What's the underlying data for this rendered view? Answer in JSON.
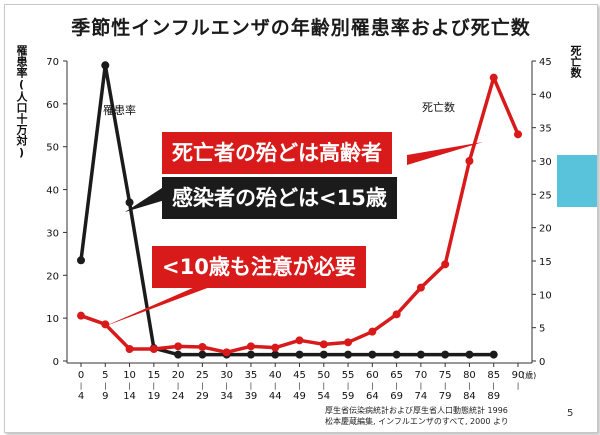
{
  "slide": {
    "title": "季節性インフルエンザの年齢別罹患率および死亡数",
    "left_axis_title": "罹患率(人口十万対)",
    "right_axis_title": "死亡数",
    "source_line1": "厚生省伝染病統計および厚生省人口動態統計 1996",
    "source_line2": "松本慶蔵編集, インフルエンザのすべて, 2000 より",
    "page_number": "5"
  },
  "callouts": {
    "elderly": "死亡者の殆どは高齢者",
    "children": "感染者の殆どは<15歳",
    "under10": "<10歳も注意が必要"
  },
  "colors": {
    "morbidity_line": "#1b1b1b",
    "mortality_line": "#d81a1a",
    "accent_strip": "#59c3dc"
  },
  "chart_data": {
    "type": "line",
    "categories": [
      "0\n4",
      "5\n9",
      "10\n14",
      "15\n19",
      "20\n24",
      "25\n29",
      "30\n34",
      "35\n39",
      "40\n44",
      "45\n49",
      "50\n54",
      "55\n59",
      "60\n64",
      "65\n69",
      "70\n74",
      "75\n79",
      "80\n84",
      "85\n89",
      "90"
    ],
    "category_top": [
      "0",
      "5",
      "10",
      "15",
      "20",
      "25",
      "30",
      "35",
      "40",
      "45",
      "50",
      "55",
      "60",
      "65",
      "70",
      "75",
      "80",
      "85",
      "90"
    ],
    "category_bottom": [
      "4",
      "9",
      "14",
      "19",
      "24",
      "29",
      "34",
      "39",
      "44",
      "49",
      "54",
      "59",
      "64",
      "69",
      "74",
      "79",
      "84",
      "89",
      ""
    ],
    "x_unit_label": "(歳)",
    "series": [
      {
        "name": "罹患率",
        "axis": "left",
        "values": [
          23.5,
          69,
          37,
          3,
          1.5,
          1.5,
          1.5,
          1.5,
          1.5,
          1.5,
          1.5,
          1.5,
          1.5,
          1.5,
          1.5,
          1.5,
          1.5,
          1.5,
          null
        ]
      },
      {
        "name": "死亡数",
        "axis": "right",
        "values": [
          6.8,
          5.5,
          1.8,
          1.8,
          2.2,
          2.1,
          1.3,
          2.2,
          2.0,
          3.1,
          2.5,
          2.8,
          4.4,
          7.0,
          11.0,
          14.5,
          30.0,
          42.5,
          34.0
        ]
      }
    ],
    "y_left": {
      "min": 0,
      "max": 70,
      "ticks": [
        "0",
        "10",
        "20",
        "30",
        "40",
        "50",
        "60",
        "70"
      ]
    },
    "y_right": {
      "min": 0,
      "max": 45,
      "ticks": [
        "0",
        "5",
        "10",
        "15",
        "20",
        "25",
        "30",
        "35",
        "40",
        "45"
      ]
    },
    "series_labels": {
      "morbidity": "罹患率",
      "mortality": "死亡数"
    },
    "grid": false
  }
}
